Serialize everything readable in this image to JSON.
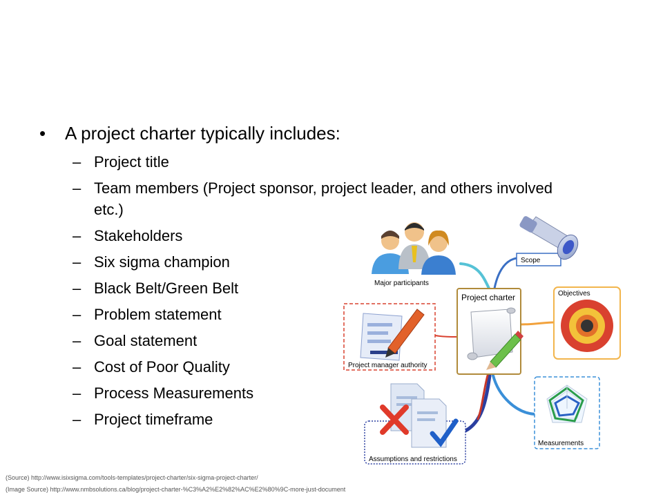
{
  "slide": {
    "main_bullet": "A project charter typically includes:",
    "items": [
      "Project title",
      "Team members (Project sponsor, project leader, and others involved",
      "Stakeholders",
      "Six sigma champion",
      "Black Belt/Green Belt",
      "Problem statement",
      "Goal statement",
      "Cost of Poor Quality",
      "Process Measurements",
      "Project timeframe"
    ],
    "item1_continuation": "etc.)",
    "bullet_glyph": "•",
    "dash_glyph": "–"
  },
  "diagram": {
    "center": "Project charter",
    "nodes": {
      "participants": "Major participants",
      "scope": "Scope",
      "objectives": "Objectives",
      "authority": "Project manager authority",
      "measurements": "Measurements",
      "assumptions": "Assumptions and restrictions"
    },
    "icons": {
      "participants": "people-icon",
      "scope": "telescope-icon",
      "objectives": "target-icon",
      "authority": "document-pen-icon",
      "measurements": "radar-chart-icon",
      "assumptions": "documents-check-icon"
    },
    "colors": {
      "participants": "#56c2d6",
      "scope": "#3a6fc4",
      "objectives": "#f2a23c",
      "authority": "#d9412f",
      "measurements": "#3a8fd8",
      "assumptions": "#2a3fa0"
    }
  },
  "sources": {
    "source": "(Source) http://www.isixsigma.com/tools-templates/project-charter/six-sigma-project-charter/",
    "image_source": "(Image Source) http://www.nmbsolutions.ca/blog/project-charter-%C3%A2%E2%82%AC%E2%80%9C-more-just-document"
  }
}
